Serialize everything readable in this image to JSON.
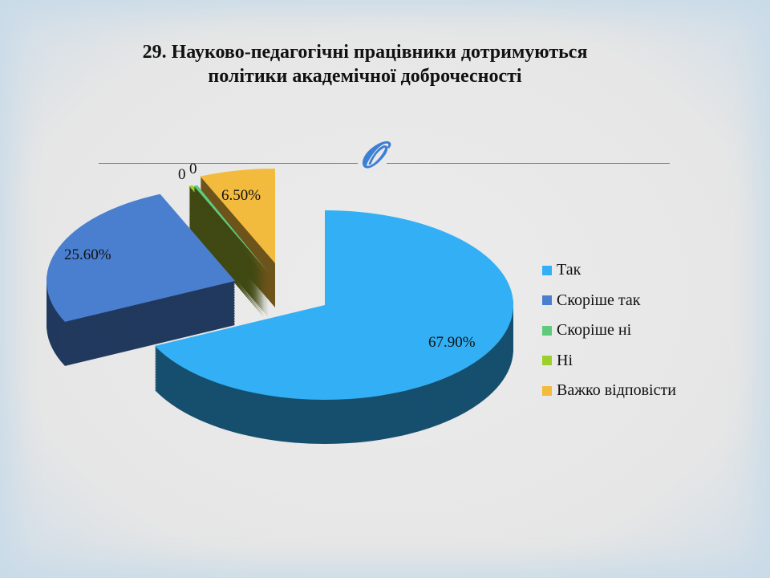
{
  "chart_data": {
    "type": "pie",
    "title": "29. Науково-педагогічні працівники дотримуються політики академічної доброчесності",
    "title_lines": [
      "29. Науково-педагогічні працівники дотримуються",
      "політики академічної доброчесності"
    ],
    "categories": [
      "Так",
      "Скоріше так",
      "Скоріше ні",
      "Ні",
      "Важко відповісти"
    ],
    "values": [
      67.9,
      25.6,
      0,
      0,
      6.5
    ],
    "data_labels": [
      "67.90%",
      "25.60%",
      "0",
      "0",
      "6.50%"
    ],
    "colors": [
      "#33b0f5",
      "#4a7fd0",
      "#5ecb7c",
      "#9bd02a",
      "#f3bb3e"
    ],
    "legend_position": "right",
    "style": "3d-exploded"
  },
  "ornament": "ƆΒ"
}
